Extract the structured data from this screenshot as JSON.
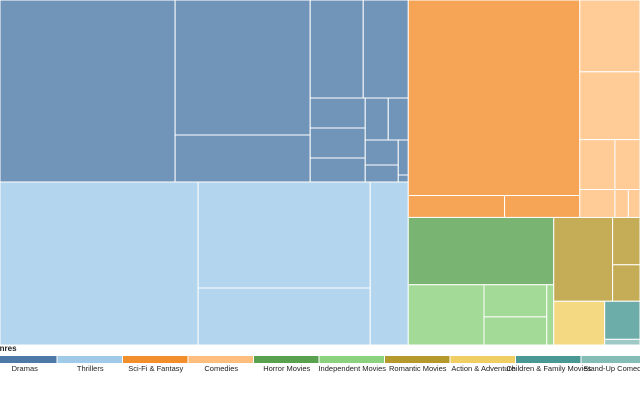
{
  "chart_data": {
    "type": "treemap",
    "legend_title": "Genres",
    "series": [
      {
        "name": "Dramas",
        "color": "#4e79a7",
        "values": [
          31850,
          18225,
          6345,
          5194,
          4410,
          1650,
          1650,
          1320,
          966,
          840,
          825,
          561,
          350,
          70
        ]
      },
      {
        "name": "Thrillers",
        "color": "#a0cbe8",
        "values": [
          32274,
          18232,
          9804,
          6194
        ]
      },
      {
        "name": "Sci-Fi & Fantasy",
        "color": "#f28e2b",
        "values": [
          33516,
          2112,
          1650
        ]
      },
      {
        "name": "Comedies",
        "color": "#ffbe7d",
        "values": [
          4320,
          4080,
          1750,
          1250,
          980,
          375,
          325
        ]
      },
      {
        "name": "Horror Movies",
        "color": "#59a14f",
        "values": [
          9782
        ]
      },
      {
        "name": "Independent Movies",
        "color": "#8cd17d",
        "values": [
          4560,
          2016,
          1764,
          420
        ]
      },
      {
        "name": "Romantic Movies",
        "color": "#b6992d",
        "values": [
          4930,
          1296,
          999
        ]
      },
      {
        "name": "Action & Adventure",
        "color": "#f1ce63",
        "values": [
          2226
        ]
      },
      {
        "name": "Children & Family Movies",
        "color": "#499894",
        "values": [
          1344
        ]
      },
      {
        "name": "Stand-Up Comedy",
        "color": "#86bcb6",
        "values": [
          200
        ]
      }
    ]
  }
}
